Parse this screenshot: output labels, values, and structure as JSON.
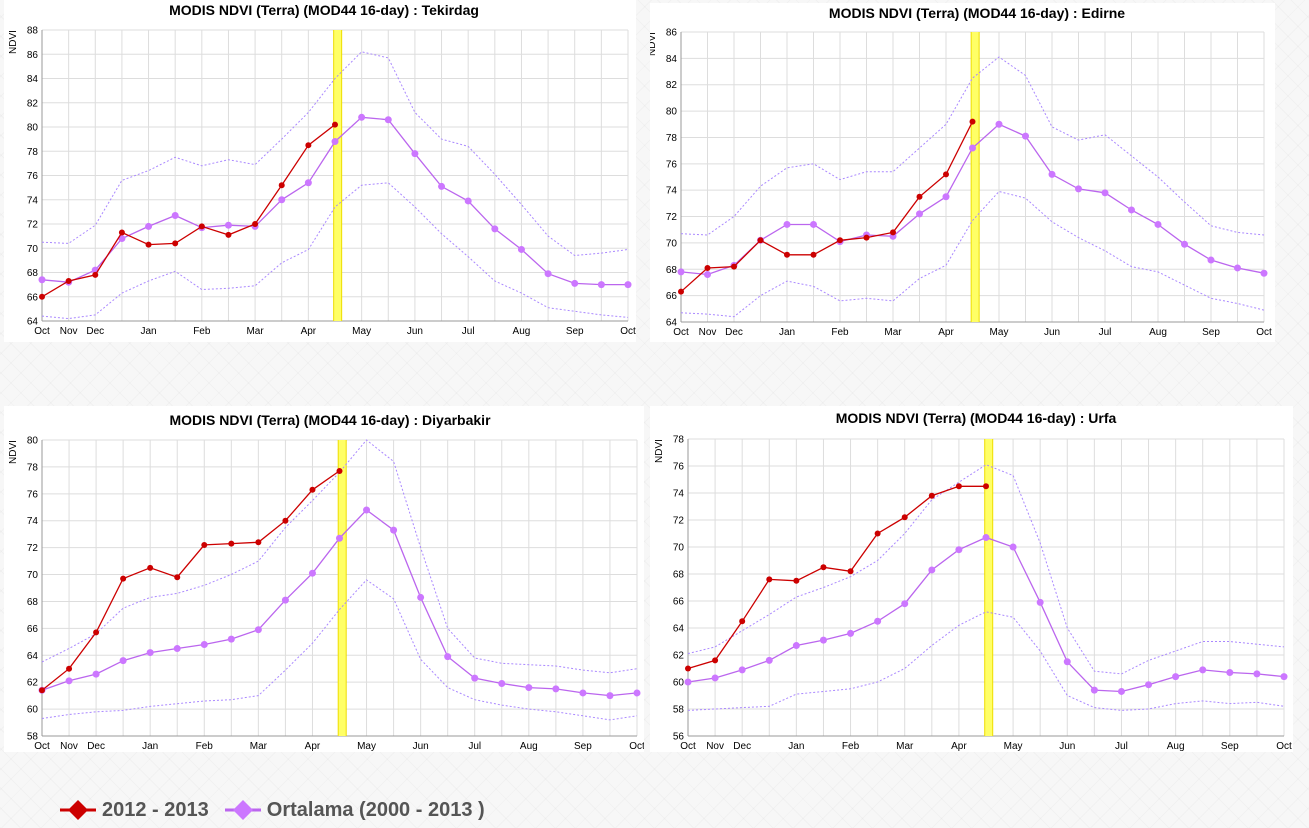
{
  "colors": {
    "current": "#cc0000",
    "average": "#bb66ee",
    "band": "#aa88ff",
    "highlight": "#ffff66",
    "highlight_edge": "#eedd00",
    "grid": "#dddddd"
  },
  "legend": {
    "items": [
      {
        "label": "2012 - 2013",
        "color": "#cc0000",
        "icon": "red-diamond-line-icon"
      },
      {
        "label": "Ortalama (2000 - 2013 )",
        "color": "#bb66ee",
        "icon": "purple-diamond-line-icon"
      }
    ]
  },
  "chart_data": [
    {
      "type": "line",
      "title": "MODIS NDVI (Terra) (MOD44 16-day) : Tekirdag",
      "ylabel": "NDVI",
      "ylim": [
        64,
        88
      ],
      "yticks": [
        64,
        66,
        68,
        70,
        72,
        74,
        76,
        78,
        80,
        82,
        84,
        86,
        88
      ],
      "x_count": 23,
      "highlight_x": 11.1,
      "xticks": [
        {
          "label": "Oct",
          "x": 0
        },
        {
          "label": "Nov",
          "x": 1
        },
        {
          "label": "Dec",
          "x": 2
        },
        {
          "label": "Jan",
          "x": 4
        },
        {
          "label": "Feb",
          "x": 6
        },
        {
          "label": "Mar",
          "x": 8
        },
        {
          "label": "Apr",
          "x": 10
        },
        {
          "label": "May",
          "x": 12
        },
        {
          "label": "Jun",
          "x": 14
        },
        {
          "label": "Jul",
          "x": 16
        },
        {
          "label": "Aug",
          "x": 18
        },
        {
          "label": "Sep",
          "x": 20
        },
        {
          "label": "Oct",
          "x": 22
        }
      ],
      "series": [
        {
          "name": "2012 - 2013",
          "role": "current",
          "values": [
            66.0,
            67.3,
            67.8,
            71.3,
            70.3,
            70.4,
            71.8,
            71.1,
            72.0,
            75.2,
            78.5,
            80.2
          ]
        },
        {
          "name": "Ortalama (2000 - 2013 )",
          "role": "average",
          "values": [
            67.4,
            67.2,
            68.2,
            70.8,
            71.8,
            72.7,
            71.7,
            71.9,
            71.8,
            74.0,
            75.4,
            78.8,
            80.8,
            80.6,
            77.8,
            75.1,
            73.9,
            71.6,
            69.9,
            67.9,
            67.1,
            67.0,
            67.0
          ]
        },
        {
          "role": "upper",
          "values": [
            70.5,
            70.4,
            71.9,
            75.6,
            76.4,
            77.5,
            76.8,
            77.3,
            76.9,
            79.0,
            81.2,
            84.0,
            86.2,
            85.7,
            81.2,
            79.0,
            78.4,
            76.1,
            73.6,
            71.0,
            69.4,
            69.6,
            69.9
          ]
        },
        {
          "role": "lower",
          "values": [
            64.4,
            64.2,
            64.5,
            66.3,
            67.3,
            68.1,
            66.6,
            66.7,
            66.9,
            68.8,
            69.9,
            73.4,
            75.2,
            75.4,
            73.4,
            71.2,
            69.3,
            67.3,
            66.3,
            65.1,
            64.8,
            64.5,
            64.3
          ]
        }
      ]
    },
    {
      "type": "line",
      "title": "MODIS NDVI (Terra) (MOD44 16-day) : Edirne",
      "ylabel": "NDVI",
      "ylim": [
        64,
        86
      ],
      "yticks": [
        64,
        66,
        68,
        70,
        72,
        74,
        76,
        78,
        80,
        82,
        84,
        86
      ],
      "x_count": 23,
      "highlight_x": 11.1,
      "xticks": [
        {
          "label": "Oct",
          "x": 0
        },
        {
          "label": "Nov",
          "x": 1
        },
        {
          "label": "Dec",
          "x": 2
        },
        {
          "label": "Jan",
          "x": 4
        },
        {
          "label": "Feb",
          "x": 6
        },
        {
          "label": "Mar",
          "x": 8
        },
        {
          "label": "Apr",
          "x": 10
        },
        {
          "label": "May",
          "x": 12
        },
        {
          "label": "Jun",
          "x": 14
        },
        {
          "label": "Jul",
          "x": 16
        },
        {
          "label": "Aug",
          "x": 18
        },
        {
          "label": "Sep",
          "x": 20
        },
        {
          "label": "Oct",
          "x": 22
        }
      ],
      "series": [
        {
          "name": "2012 - 2013",
          "role": "current",
          "values": [
            66.3,
            68.1,
            68.2,
            70.2,
            69.1,
            69.1,
            70.2,
            70.4,
            70.8,
            73.5,
            75.2,
            79.2
          ]
        },
        {
          "name": "Ortalama (2000 - 2013 )",
          "role": "average",
          "values": [
            67.8,
            67.6,
            68.3,
            70.2,
            71.4,
            71.4,
            70.1,
            70.6,
            70.5,
            72.2,
            73.5,
            77.2,
            79.0,
            78.1,
            75.2,
            74.1,
            73.8,
            72.5,
            71.4,
            69.9,
            68.7,
            68.1,
            67.7
          ]
        },
        {
          "role": "upper",
          "values": [
            70.7,
            70.6,
            72.0,
            74.3,
            75.7,
            76.0,
            74.8,
            75.4,
            75.4,
            77.2,
            79.0,
            82.5,
            84.1,
            82.7,
            78.8,
            77.8,
            78.2,
            76.6,
            75.0,
            73.1,
            71.3,
            70.8,
            70.6
          ]
        },
        {
          "role": "lower",
          "values": [
            64.7,
            64.6,
            64.4,
            66.0,
            67.1,
            66.7,
            65.6,
            65.8,
            65.6,
            67.3,
            68.3,
            71.7,
            73.9,
            73.4,
            71.6,
            70.4,
            69.4,
            68.2,
            67.8,
            66.8,
            65.8,
            65.4,
            64.9
          ]
        }
      ]
    },
    {
      "type": "line",
      "title": "MODIS NDVI (Terra) (MOD44 16-day) : Diyarbakir",
      "ylabel": "NDVI",
      "ylim": [
        58,
        80
      ],
      "yticks": [
        58,
        60,
        62,
        64,
        66,
        68,
        70,
        72,
        74,
        76,
        78,
        80
      ],
      "x_count": 23,
      "highlight_x": 11.1,
      "xticks": [
        {
          "label": "Oct",
          "x": 0
        },
        {
          "label": "Nov",
          "x": 1
        },
        {
          "label": "Dec",
          "x": 2
        },
        {
          "label": "Jan",
          "x": 4
        },
        {
          "label": "Feb",
          "x": 6
        },
        {
          "label": "Mar",
          "x": 8
        },
        {
          "label": "Apr",
          "x": 10
        },
        {
          "label": "May",
          "x": 12
        },
        {
          "label": "Jun",
          "x": 14
        },
        {
          "label": "Jul",
          "x": 16
        },
        {
          "label": "Aug",
          "x": 18
        },
        {
          "label": "Sep",
          "x": 20
        },
        {
          "label": "Oct",
          "x": 22
        }
      ],
      "series": [
        {
          "name": "2012 - 2013",
          "role": "current",
          "values": [
            61.4,
            63.0,
            65.7,
            69.7,
            70.5,
            69.8,
            72.2,
            72.3,
            72.4,
            74.0,
            76.3,
            77.7
          ]
        },
        {
          "name": "Ortalama (2000 - 2013 )",
          "role": "average",
          "values": [
            61.4,
            62.1,
            62.6,
            63.6,
            64.2,
            64.5,
            64.8,
            65.2,
            65.9,
            68.1,
            70.1,
            72.7,
            74.8,
            73.3,
            68.3,
            63.9,
            62.3,
            61.9,
            61.6,
            61.5,
            61.2,
            61.0,
            61.2
          ]
        },
        {
          "role": "upper",
          "values": [
            63.5,
            64.5,
            65.6,
            67.5,
            68.3,
            68.6,
            69.2,
            70.0,
            71.0,
            73.5,
            75.5,
            77.6,
            80.0,
            78.4,
            72.0,
            66.0,
            63.8,
            63.4,
            63.3,
            63.2,
            62.9,
            62.7,
            63.0
          ]
        },
        {
          "role": "lower",
          "values": [
            59.3,
            59.6,
            59.8,
            59.9,
            60.2,
            60.4,
            60.6,
            60.7,
            61.0,
            62.9,
            64.9,
            67.4,
            69.6,
            68.2,
            63.7,
            61.6,
            60.7,
            60.3,
            60.0,
            59.8,
            59.5,
            59.2,
            59.5
          ]
        }
      ]
    },
    {
      "type": "line",
      "title": "MODIS NDVI (Terra) (MOD44 16-day) : Urfa",
      "ylabel": "NDVI",
      "ylim": [
        56,
        78
      ],
      "yticks": [
        56,
        58,
        60,
        62,
        64,
        66,
        68,
        70,
        72,
        74,
        76,
        78
      ],
      "x_count": 23,
      "highlight_x": 11.1,
      "xticks": [
        {
          "label": "Oct",
          "x": 0
        },
        {
          "label": "Nov",
          "x": 1
        },
        {
          "label": "Dec",
          "x": 2
        },
        {
          "label": "Jan",
          "x": 4
        },
        {
          "label": "Feb",
          "x": 6
        },
        {
          "label": "Mar",
          "x": 8
        },
        {
          "label": "Apr",
          "x": 10
        },
        {
          "label": "May",
          "x": 12
        },
        {
          "label": "Jun",
          "x": 14
        },
        {
          "label": "Jul",
          "x": 16
        },
        {
          "label": "Aug",
          "x": 18
        },
        {
          "label": "Sep",
          "x": 20
        },
        {
          "label": "Oct",
          "x": 22
        }
      ],
      "series": [
        {
          "name": "2012 - 2013",
          "role": "current",
          "values": [
            61.0,
            61.6,
            64.5,
            67.6,
            67.5,
            68.5,
            68.2,
            71.0,
            72.2,
            73.8,
            74.5,
            74.5
          ]
        },
        {
          "name": "Ortalama (2000 - 2013 )",
          "role": "average",
          "values": [
            60.0,
            60.3,
            60.9,
            61.6,
            62.7,
            63.1,
            63.6,
            64.5,
            65.8,
            68.3,
            69.8,
            70.7,
            70.0,
            65.9,
            61.5,
            59.4,
            59.3,
            59.8,
            60.4,
            60.9,
            60.7,
            60.6,
            60.4
          ]
        },
        {
          "role": "upper",
          "values": [
            62.1,
            62.6,
            63.8,
            65.0,
            66.3,
            67.0,
            67.8,
            69.0,
            71.0,
            73.5,
            74.8,
            76.1,
            75.3,
            70.3,
            64.0,
            60.8,
            60.6,
            61.6,
            62.3,
            63.0,
            63.0,
            62.8,
            62.6
          ]
        },
        {
          "role": "lower",
          "values": [
            57.9,
            58.0,
            58.1,
            58.2,
            59.1,
            59.3,
            59.5,
            60.0,
            61.0,
            62.7,
            64.2,
            65.2,
            64.8,
            62.3,
            59.0,
            58.1,
            57.9,
            58.0,
            58.4,
            58.6,
            58.4,
            58.5,
            58.2
          ]
        }
      ]
    }
  ]
}
